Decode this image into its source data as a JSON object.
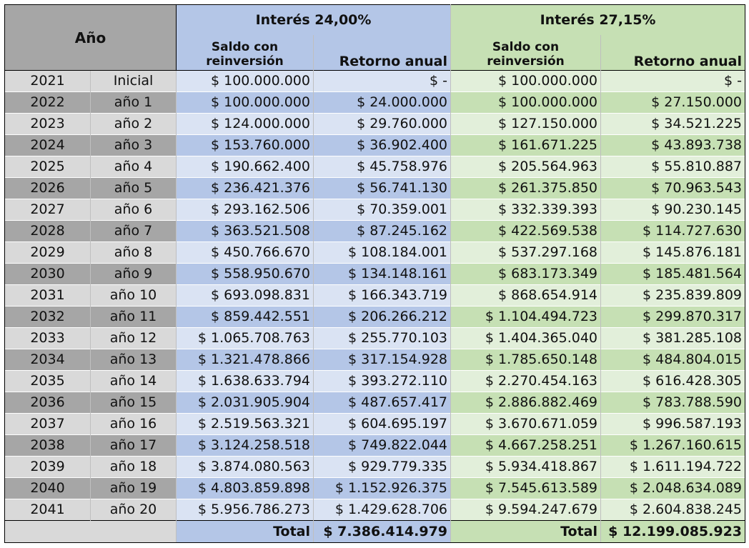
{
  "header": {
    "year_label": "Año",
    "scenario_a": {
      "title": "Interés 24,00%",
      "col_balance": "Saldo con reinversión",
      "col_return": "Retorno anual"
    },
    "scenario_b": {
      "title": "Interés 27,15%",
      "col_balance": "Saldo con reinversión",
      "col_return": "Retorno anual"
    }
  },
  "rows": [
    {
      "year": "2021",
      "label": "Inicial",
      "a_balance": "$ 100.000.000",
      "a_return": "$ -",
      "b_balance": "$ 100.000.000",
      "b_return": "$ -"
    },
    {
      "year": "2022",
      "label": "año 1",
      "a_balance": "$ 100.000.000",
      "a_return": "$ 24.000.000",
      "b_balance": "$ 100.000.000",
      "b_return": "$ 27.150.000"
    },
    {
      "year": "2023",
      "label": "año 2",
      "a_balance": "$ 124.000.000",
      "a_return": "$ 29.760.000",
      "b_balance": "$ 127.150.000",
      "b_return": "$ 34.521.225"
    },
    {
      "year": "2024",
      "label": "año 3",
      "a_balance": "$ 153.760.000",
      "a_return": "$ 36.902.400",
      "b_balance": "$ 161.671.225",
      "b_return": "$ 43.893.738"
    },
    {
      "year": "2025",
      "label": "año 4",
      "a_balance": "$ 190.662.400",
      "a_return": "$ 45.758.976",
      "b_balance": "$ 205.564.963",
      "b_return": "$ 55.810.887"
    },
    {
      "year": "2026",
      "label": "año 5",
      "a_balance": "$ 236.421.376",
      "a_return": "$ 56.741.130",
      "b_balance": "$ 261.375.850",
      "b_return": "$ 70.963.543"
    },
    {
      "year": "2027",
      "label": "año 6",
      "a_balance": "$ 293.162.506",
      "a_return": "$ 70.359.001",
      "b_balance": "$ 332.339.393",
      "b_return": "$ 90.230.145"
    },
    {
      "year": "2028",
      "label": "año 7",
      "a_balance": "$ 363.521.508",
      "a_return": "$ 87.245.162",
      "b_balance": "$ 422.569.538",
      "b_return": "$ 114.727.630"
    },
    {
      "year": "2029",
      "label": "año 8",
      "a_balance": "$ 450.766.670",
      "a_return": "$ 108.184.001",
      "b_balance": "$ 537.297.168",
      "b_return": "$ 145.876.181"
    },
    {
      "year": "2030",
      "label": "año 9",
      "a_balance": "$ 558.950.670",
      "a_return": "$ 134.148.161",
      "b_balance": "$ 683.173.349",
      "b_return": "$ 185.481.564"
    },
    {
      "year": "2031",
      "label": "año 10",
      "a_balance": "$ 693.098.831",
      "a_return": "$ 166.343.719",
      "b_balance": "$ 868.654.914",
      "b_return": "$ 235.839.809"
    },
    {
      "year": "2032",
      "label": "año 11",
      "a_balance": "$ 859.442.551",
      "a_return": "$ 206.266.212",
      "b_balance": "$ 1.104.494.723",
      "b_return": "$ 299.870.317"
    },
    {
      "year": "2033",
      "label": "año 12",
      "a_balance": "$ 1.065.708.763",
      "a_return": "$ 255.770.103",
      "b_balance": "$ 1.404.365.040",
      "b_return": "$ 381.285.108"
    },
    {
      "year": "2034",
      "label": "año 13",
      "a_balance": "$ 1.321.478.866",
      "a_return": "$ 317.154.928",
      "b_balance": "$ 1.785.650.148",
      "b_return": "$ 484.804.015"
    },
    {
      "year": "2035",
      "label": "año 14",
      "a_balance": "$ 1.638.633.794",
      "a_return": "$ 393.272.110",
      "b_balance": "$ 2.270.454.163",
      "b_return": "$ 616.428.305"
    },
    {
      "year": "2036",
      "label": "año 15",
      "a_balance": "$ 2.031.905.904",
      "a_return": "$ 487.657.417",
      "b_balance": "$ 2.886.882.469",
      "b_return": "$ 783.788.590"
    },
    {
      "year": "2037",
      "label": "año 16",
      "a_balance": "$ 2.519.563.321",
      "a_return": "$ 604.695.197",
      "b_balance": "$ 3.670.671.059",
      "b_return": "$ 996.587.193"
    },
    {
      "year": "2038",
      "label": "año 17",
      "a_balance": "$ 3.124.258.518",
      "a_return": "$ 749.822.044",
      "b_balance": "$ 4.667.258.251",
      "b_return": "$ 1.267.160.615"
    },
    {
      "year": "2039",
      "label": "año 18",
      "a_balance": "$ 3.874.080.563",
      "a_return": "$ 929.779.335",
      "b_balance": "$ 5.934.418.867",
      "b_return": "$ 1.611.194.722"
    },
    {
      "year": "2040",
      "label": "año 19",
      "a_balance": "$ 4.803.859.898",
      "a_return": "$ 1.152.926.375",
      "b_balance": "$ 7.545.613.589",
      "b_return": "$ 2.048.634.089"
    },
    {
      "year": "2041",
      "label": "año 20",
      "a_balance": "$ 5.956.786.273",
      "a_return": "$ 1.429.628.706",
      "b_balance": "$ 9.594.247.679",
      "b_return": "$ 2.604.838.245"
    }
  ],
  "totals": {
    "label_a": "Total",
    "value_a": "$ 7.386.414.979",
    "label_b": "Total",
    "value_b": "$ 12.199.085.923"
  },
  "colors": {
    "blue_header": "#b4c6e7",
    "blue_light": "#dae3f3",
    "green_header": "#c6e0b4",
    "green_light": "#e2efda",
    "gray_dark": "#a6a6a6",
    "gray_light": "#d9d9d9"
  }
}
